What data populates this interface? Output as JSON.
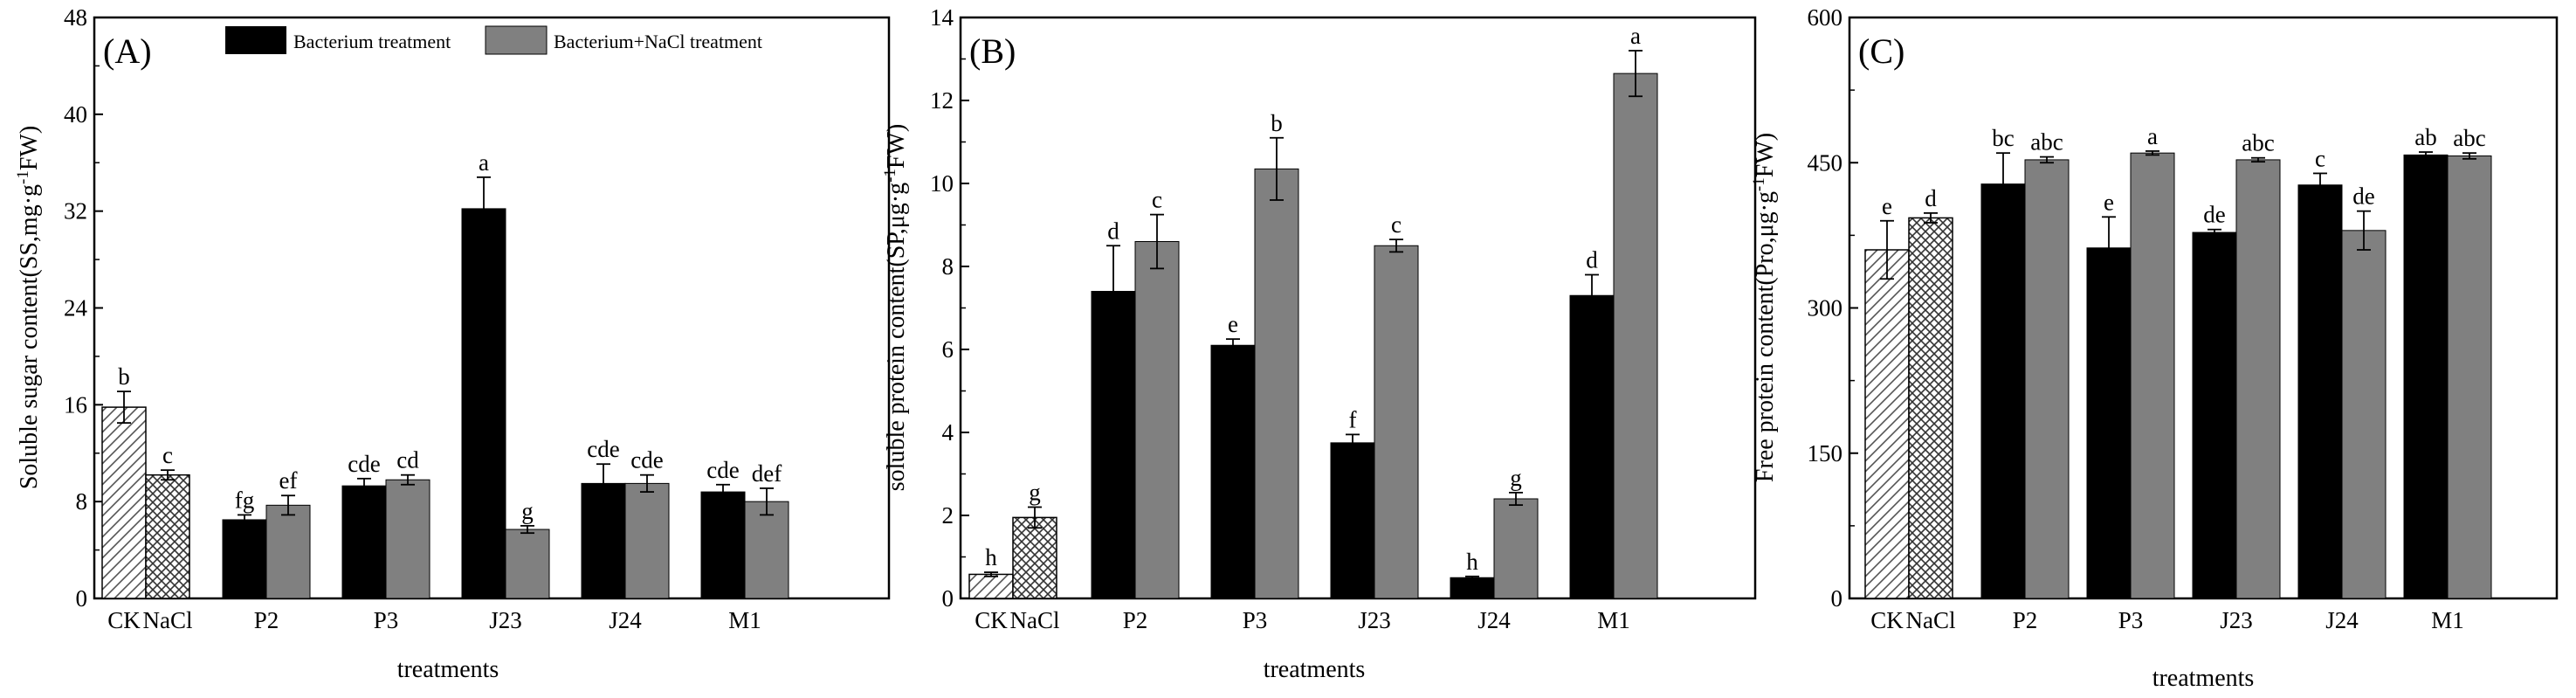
{
  "colors": {
    "bacterium": "#000000",
    "bacterium_nacl": "#808080",
    "axis": "#000000"
  },
  "legend": [
    {
      "label": "Bacterium treatment",
      "color": "#000000"
    },
    {
      "label": "Bacterium+NaCl treatment",
      "color": "#808080"
    }
  ],
  "chart_data": [
    {
      "type": "bar",
      "panel": "(A)",
      "title": "",
      "xlabel": "treatments",
      "ylabel": "Soluble sugar content(SS,mg·g⁻¹FW)",
      "ylabel_main": "Soluble sugar content(SS,mg·g",
      "ylabel_sup": "-1",
      "ylabel_tail": "FW)",
      "ylim": [
        0,
        48
      ],
      "yticks": [
        0,
        8,
        16,
        24,
        32,
        40,
        48
      ],
      "control_categories": [
        "CK",
        "NaCl"
      ],
      "controls": [
        {
          "name": "CK",
          "value": 15.8,
          "error": 1.3,
          "letter": "b",
          "pattern": "hatch"
        },
        {
          "name": "NaCl",
          "value": 10.2,
          "error": 0.4,
          "letter": "c",
          "pattern": "crosshatch"
        }
      ],
      "categories": [
        "P2",
        "P3",
        "J23",
        "J24",
        "M1"
      ],
      "series": [
        {
          "name": "Bacterium treatment",
          "values": [
            6.5,
            9.3,
            32.2,
            9.5,
            8.8
          ],
          "errors": [
            0.4,
            0.6,
            2.6,
            1.6,
            0.6
          ],
          "letters": [
            "fg",
            "cde",
            "a",
            "cde",
            "cde"
          ]
        },
        {
          "name": "Bacterium+NaCl treatment",
          "values": [
            7.7,
            9.8,
            5.7,
            9.5,
            8.0
          ],
          "errors": [
            0.8,
            0.4,
            0.3,
            0.7,
            1.1
          ],
          "letters": [
            "ef",
            "cd",
            "g",
            "cde",
            "def"
          ]
        }
      ]
    },
    {
      "type": "bar",
      "panel": "(B)",
      "title": "",
      "xlabel": "treatments",
      "ylabel": "soluble protein content(SP,μg·g⁻¹FW)",
      "ylabel_main": "soluble protein content(SP,μg·g",
      "ylabel_sup": "-1",
      "ylabel_tail": "FW)",
      "ylim": [
        0,
        14
      ],
      "yticks": [
        0,
        2,
        4,
        6,
        8,
        10,
        12,
        14
      ],
      "control_categories": [
        "CK",
        "NaCl"
      ],
      "controls": [
        {
          "name": "CK",
          "value": 0.58,
          "error": 0.05,
          "letter": "h",
          "pattern": "hatch"
        },
        {
          "name": "NaCl",
          "value": 1.95,
          "error": 0.25,
          "letter": "g",
          "pattern": "crosshatch"
        }
      ],
      "categories": [
        "P2",
        "P3",
        "J23",
        "J24",
        "M1"
      ],
      "series": [
        {
          "name": "Bacterium treatment",
          "values": [
            7.4,
            6.1,
            3.75,
            0.5,
            7.3
          ],
          "errors": [
            1.1,
            0.15,
            0.2,
            0.03,
            0.5
          ],
          "letters": [
            "d",
            "e",
            "f",
            "h",
            "d"
          ]
        },
        {
          "name": "Bacterium+NaCl treatment",
          "values": [
            8.6,
            10.35,
            8.5,
            2.4,
            12.65
          ],
          "errors": [
            0.65,
            0.75,
            0.15,
            0.15,
            0.55
          ],
          "letters": [
            "c",
            "b",
            "c",
            "g",
            "a"
          ]
        }
      ]
    },
    {
      "type": "bar",
      "panel": "(C)",
      "title": "",
      "xlabel": "treatments",
      "ylabel": "Free protein content(Pro,μg·g⁻¹FW)",
      "ylabel_main": "Free protein content(Pro,μg·g",
      "ylabel_sup": "-1",
      "ylabel_tail": "FW)",
      "ylim": [
        0,
        600
      ],
      "yticks": [
        0,
        150,
        300,
        450,
        600
      ],
      "control_categories": [
        "CK",
        "NaCl"
      ],
      "controls": [
        {
          "name": "CK",
          "value": 360,
          "error": 30,
          "letter": "e",
          "pattern": "hatch"
        },
        {
          "name": "NaCl",
          "value": 393,
          "error": 5,
          "letter": "d",
          "pattern": "crosshatch"
        }
      ],
      "categories": [
        "P2",
        "P3",
        "J23",
        "J24",
        "M1"
      ],
      "series": [
        {
          "name": "Bacterium treatment",
          "values": [
            428,
            362,
            378,
            427,
            458
          ],
          "errors": [
            32,
            32,
            3,
            12,
            3
          ],
          "letters": [
            "bc",
            "e",
            "de",
            "c",
            "ab"
          ]
        },
        {
          "name": "Bacterium+NaCl treatment",
          "values": [
            453,
            460,
            453,
            380,
            457
          ],
          "errors": [
            3,
            2,
            2,
            20,
            3
          ],
          "letters": [
            "abc",
            "a",
            "abc",
            "de",
            "abc"
          ]
        }
      ]
    }
  ]
}
